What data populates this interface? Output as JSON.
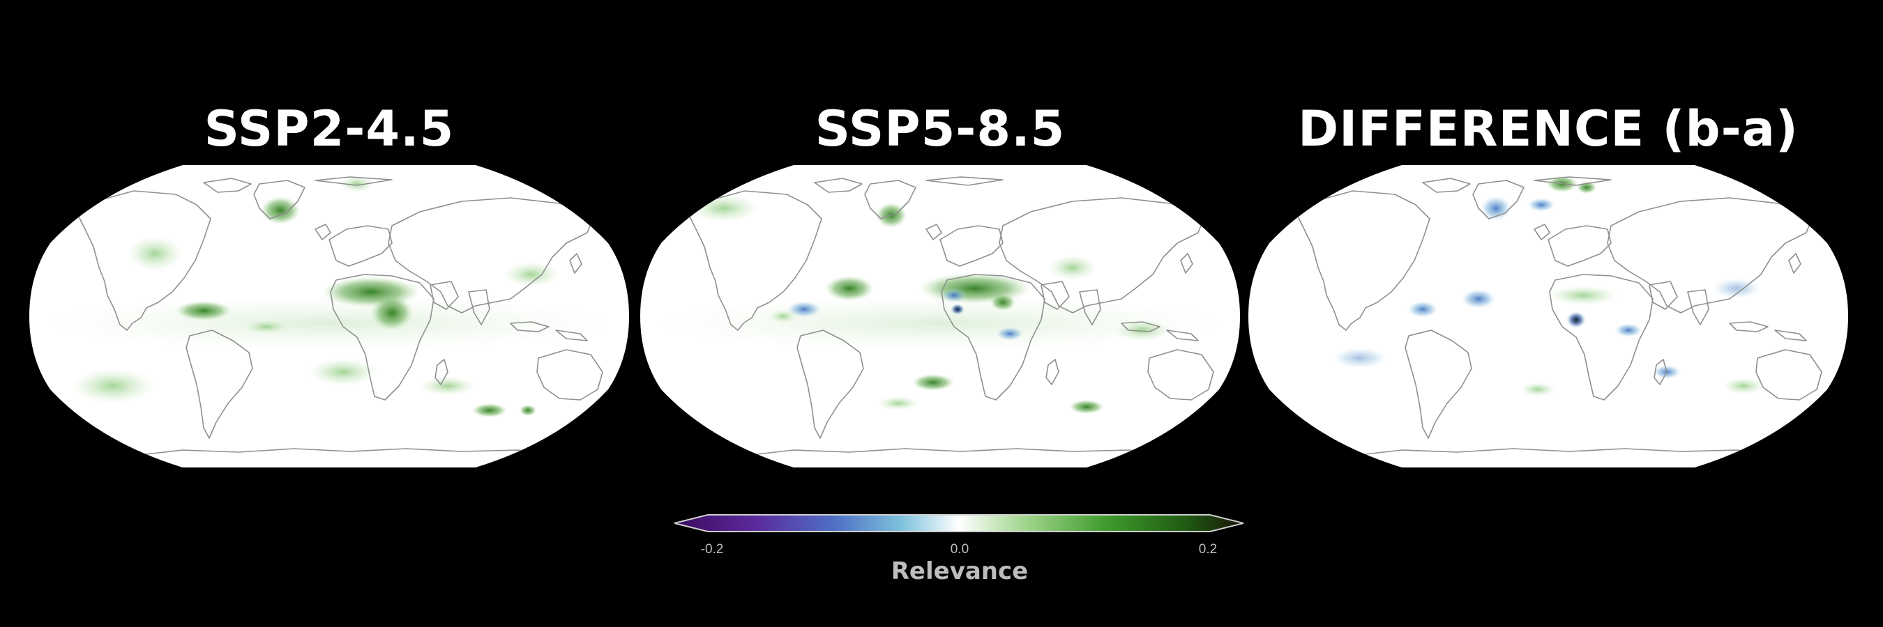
{
  "panels": [
    {
      "title": "SSP2-4.5"
    },
    {
      "title": "SSP5-8.5"
    },
    {
      "title": "DIFFERENCE (b-a)"
    }
  ],
  "colorbar": {
    "label": "Relevance",
    "min_label": "-0.2",
    "mid_label": "0.0",
    "max_label": "0.2",
    "range": [
      -0.2,
      0.2
    ],
    "extend": "both",
    "colors": [
      "#3b0a5e",
      "#5b2a9a",
      "#4e6fc4",
      "#7fc2dc",
      "#ffffff",
      "#9ed48a",
      "#3f9a2c",
      "#1f5a12",
      "#1a1208"
    ]
  },
  "map": {
    "projection": "robinson",
    "ocean_color": "#ffffff",
    "coastline_color": "#8f8f8f"
  }
}
